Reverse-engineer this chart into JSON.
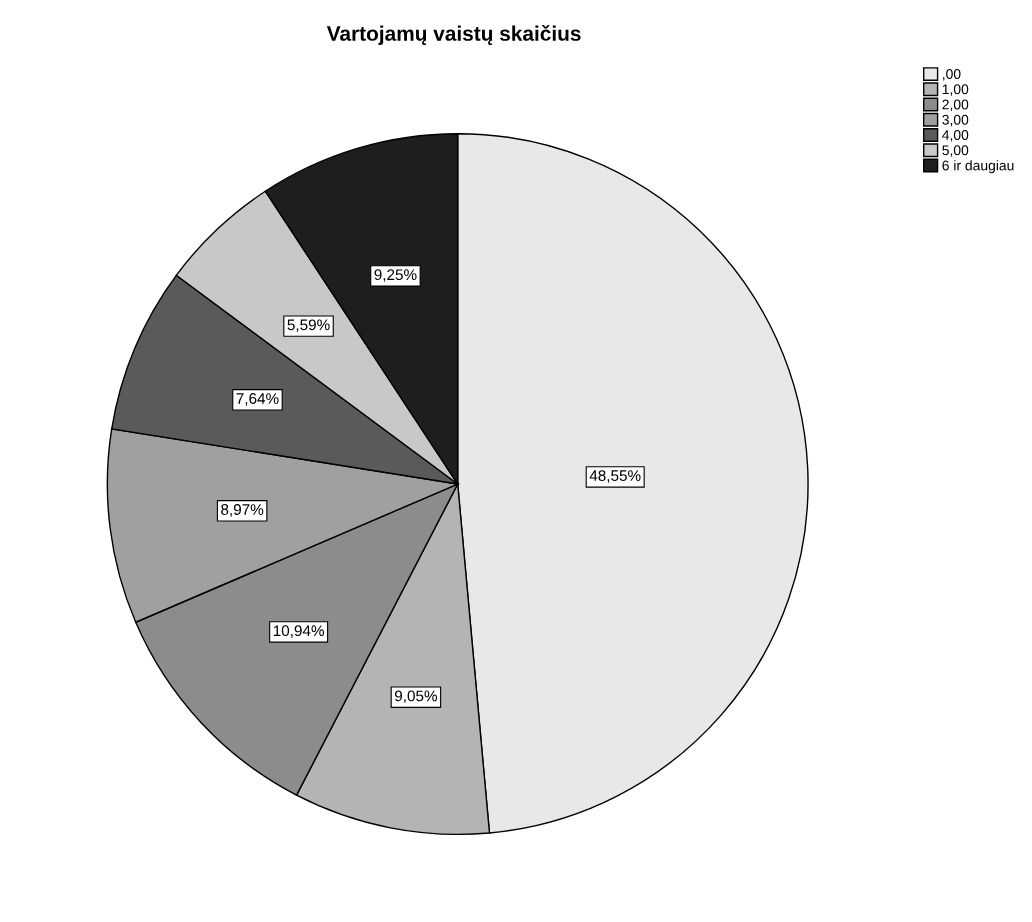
{
  "chart_data": {
    "type": "pie",
    "title": "Vartojamų vaistų skaičius",
    "categories": [
      ",00",
      "1,00",
      "2,00",
      "3,00",
      "4,00",
      "5,00",
      "6 ir daugiau"
    ],
    "values": [
      48.55,
      9.05,
      10.94,
      8.97,
      7.64,
      5.59,
      9.25
    ],
    "value_labels": [
      "48,55%",
      "9,05%",
      "10,94%",
      "8,97%",
      "7,64%",
      "5,59%",
      "9,25%"
    ],
    "colors": [
      "#e8e8e8",
      "#b4b4b4",
      "#8c8c8c",
      "#a0a0a0",
      "#5a5a5a",
      "#c8c8c8",
      "#1e1e1e"
    ],
    "legend": "top right"
  }
}
